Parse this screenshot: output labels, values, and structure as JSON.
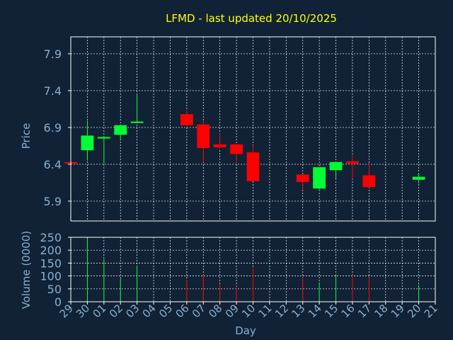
{
  "colors": {
    "background": "#112236",
    "title": "#ffff00",
    "axis_text": "#8aaed0",
    "frame": "#ffffff",
    "grid": "#ffffff",
    "up": "#00ff33",
    "down": "#ff0000"
  },
  "chart_data": {
    "type": "candlestick",
    "title": "LFMD - last updated 20/10/2025",
    "xlabel": "Day",
    "price_panel": {
      "ylabel": "Price",
      "ylim": [
        5.63,
        8.13
      ],
      "yticks": [
        5.9,
        6.4,
        6.9,
        7.4,
        7.9
      ],
      "ytick_labels": [
        "5.9",
        "6.4",
        "6.9",
        "7.4",
        "7.9"
      ]
    },
    "volume_panel": {
      "ylabel": "Volume (0000)",
      "ylim": [
        0,
        250
      ],
      "yticks": [
        0,
        50,
        100,
        150,
        200,
        250
      ],
      "ytick_labels": [
        "0",
        "50",
        "100",
        "150",
        "200",
        "250"
      ]
    },
    "x_ticks": [
      "29",
      "30",
      "01",
      "02",
      "03",
      "04",
      "05",
      "06",
      "07",
      "08",
      "09",
      "10",
      "11",
      "12",
      "13",
      "14",
      "15",
      "16",
      "17",
      "18",
      "19",
      "20",
      "21"
    ],
    "candles": [
      {
        "day": "29",
        "open": 6.43,
        "high": 6.43,
        "low": 6.41,
        "close": 6.41,
        "volume": 0
      },
      {
        "day": "30",
        "open": 6.59,
        "high": 6.99,
        "low": 6.45,
        "close": 6.79,
        "volume": 245
      },
      {
        "day": "01",
        "open": 6.75,
        "high": 6.78,
        "low": 6.41,
        "close": 6.77,
        "volume": 165
      },
      {
        "day": "02",
        "open": 6.8,
        "high": 6.94,
        "low": 6.72,
        "close": 6.93,
        "volume": 90
      },
      {
        "day": "03",
        "open": 6.96,
        "high": 7.34,
        "low": 6.96,
        "close": 6.98,
        "volume": 140
      },
      {
        "day": "06",
        "open": 7.08,
        "high": 7.13,
        "low": 6.92,
        "close": 6.93,
        "volume": 85
      },
      {
        "day": "07",
        "open": 6.94,
        "high": 6.99,
        "low": 6.43,
        "close": 6.62,
        "volume": 105
      },
      {
        "day": "08",
        "open": 6.67,
        "high": 6.82,
        "low": 6.61,
        "close": 6.63,
        "volume": 70
      },
      {
        "day": "09",
        "open": 6.67,
        "high": 6.67,
        "low": 6.42,
        "close": 6.54,
        "volume": 60
      },
      {
        "day": "10",
        "open": 6.56,
        "high": 6.66,
        "low": 6.17,
        "close": 6.17,
        "volume": 130
      },
      {
        "day": "13",
        "open": 6.26,
        "high": 6.26,
        "low": 6.06,
        "close": 6.16,
        "volume": 95
      },
      {
        "day": "14",
        "open": 6.07,
        "high": 6.36,
        "low": 6.06,
        "close": 6.36,
        "volume": 75
      },
      {
        "day": "15",
        "open": 6.32,
        "high": 6.43,
        "low": 6.2,
        "close": 6.43,
        "volume": 105
      },
      {
        "day": "16",
        "open": 6.44,
        "high": 6.54,
        "low": 6.2,
        "close": 6.41,
        "volume": 105
      },
      {
        "day": "17",
        "open": 6.25,
        "high": 6.42,
        "low": 6.08,
        "close": 6.09,
        "volume": 95
      },
      {
        "day": "20",
        "open": 6.19,
        "high": 6.28,
        "low": 6.14,
        "close": 6.23,
        "volume": 65
      }
    ]
  }
}
